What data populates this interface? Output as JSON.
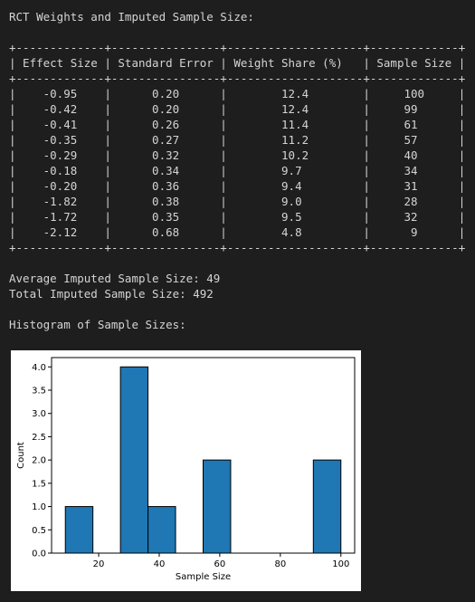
{
  "header": {
    "title": "RCT Weights and Imputed Sample Size:"
  },
  "table": {
    "border": "+-------------+----------------+--------------------+-------------+",
    "headers": [
      "Effect Size",
      "Standard Error",
      "Weight Share (%)",
      "Sample Size"
    ],
    "col_widths": [
      13,
      16,
      20,
      13
    ],
    "rows": [
      [
        "-0.95",
        "0.20",
        "12.4",
        "100"
      ],
      [
        "-0.42",
        "0.20",
        "12.4",
        "99"
      ],
      [
        "-0.41",
        "0.26",
        "11.4",
        "61"
      ],
      [
        "-0.35",
        "0.27",
        "11.2",
        "57"
      ],
      [
        "-0.29",
        "0.32",
        "10.2",
        "40"
      ],
      [
        "-0.18",
        "0.34",
        "9.7",
        "34"
      ],
      [
        "-0.20",
        "0.36",
        "9.4",
        "31"
      ],
      [
        "-1.82",
        "0.38",
        "9.0",
        "28"
      ],
      [
        "-1.72",
        "0.35",
        "9.5",
        "32"
      ],
      [
        "-2.12",
        "0.68",
        "4.8",
        "9"
      ]
    ]
  },
  "summary": {
    "average": "Average Imputed Sample Size: 49",
    "total": "Total Imputed Sample Size: 492"
  },
  "histogram_title": "Histogram of Sample Sizes:",
  "chart_data": {
    "type": "bar",
    "title": "",
    "xlabel": "Sample Size",
    "ylabel": "Count",
    "bin_edges": [
      9,
      18.1,
      27.2,
      36.3,
      45.4,
      54.5,
      63.6,
      72.7,
      81.8,
      90.9,
      100
    ],
    "values": [
      1,
      0,
      4,
      1,
      0,
      2,
      0,
      0,
      0,
      2
    ],
    "xlim": [
      4.45,
      104.55
    ],
    "ylim": [
      0,
      4.2
    ],
    "xticks": [
      20,
      40,
      60,
      80,
      100
    ],
    "yticks": [
      0.0,
      0.5,
      1.0,
      1.5,
      2.0,
      2.5,
      3.0,
      3.5,
      4.0
    ],
    "bar_color": "#1f77b4",
    "grid": false
  }
}
